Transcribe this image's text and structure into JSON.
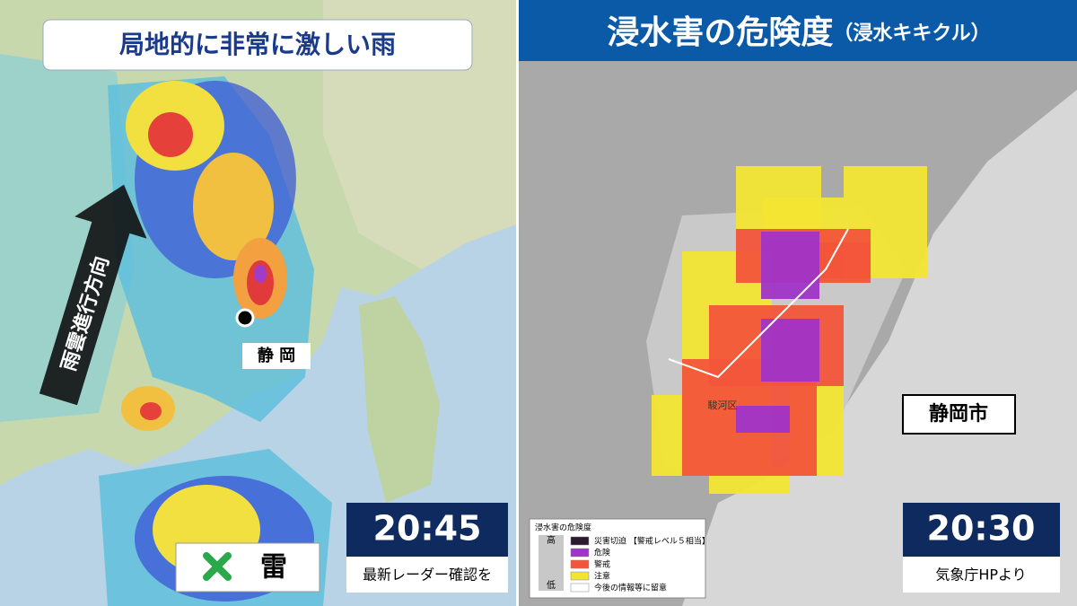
{
  "left_panel": {
    "title": "局地的に非常に激しい雨",
    "arrow_label": "雨雲進行方向",
    "place_label": "静 岡",
    "warning": "雷",
    "time": "20:45",
    "caption": "最新レーダー確認を"
  },
  "right_panel": {
    "header": {
      "title": "浸水害の危険度",
      "subtitle": "（浸水キキクル）"
    },
    "city_label": "静岡市",
    "ward_label": "駿河区",
    "time": "20:30",
    "caption": "気象庁HPより",
    "legend": {
      "title": "浸水害の危険度",
      "high": "高",
      "low": "低",
      "items": [
        {
          "label": "災害切迫 【警戒レベル５相当】",
          "color": "#2b1a2e"
        },
        {
          "label": "危険",
          "color": "#a034c8"
        },
        {
          "label": "警戒",
          "color": "#f2553a"
        },
        {
          "label": "注意",
          "color": "#f2e531"
        },
        {
          "label": "今後の情報等に留意",
          "color": "#ffffff"
        }
      ]
    }
  }
}
